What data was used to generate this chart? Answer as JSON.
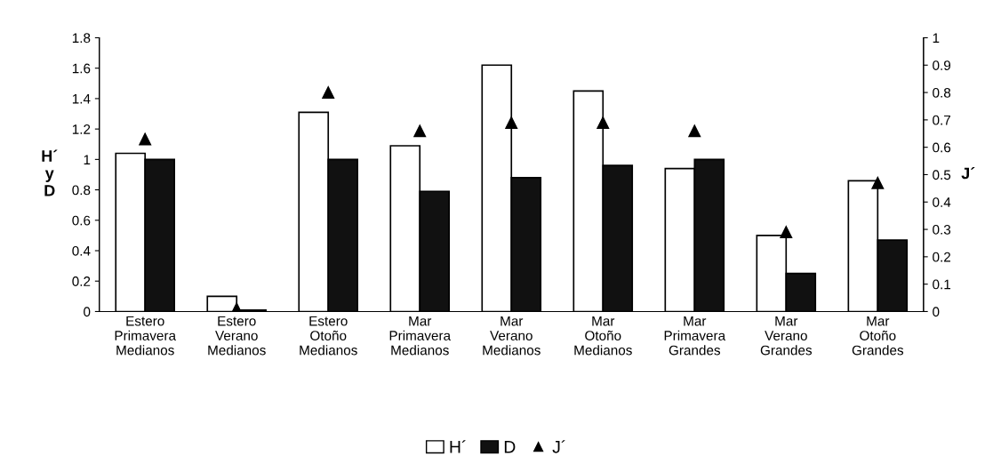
{
  "chart_data": {
    "type": "bar",
    "categories": [
      "Estero\nPrimavera\nMedianos",
      "Estero\nVerano\nMedianos",
      "Estero\nOtoño\nMedianos",
      "Mar\nPrimavera\nMedianos",
      "Mar\nVerano\nMedianos",
      "Mar\nOtoño\nMedianos",
      "Mar\nPrimavera\nGrandes",
      "Mar\nVerano\nGrandes",
      "Mar\nOtoño\nGrandes"
    ],
    "series": [
      {
        "name": "H´",
        "color": "#ffffff",
        "values": [
          1.04,
          0.1,
          1.31,
          1.09,
          1.62,
          1.45,
          0.94,
          0.5,
          0.86
        ]
      },
      {
        "name": "D",
        "color": "#111111",
        "values": [
          1.0,
          0.01,
          1.0,
          0.79,
          0.88,
          0.96,
          1.0,
          0.25,
          0.47
        ]
      },
      {
        "name": "J´",
        "type": "scatter",
        "axis": "y2",
        "marker": "triangle",
        "color": "#000000",
        "values": [
          0.63,
          0.01,
          0.8,
          0.66,
          0.69,
          0.69,
          0.66,
          0.29,
          0.47
        ]
      }
    ],
    "ylabel": "H´\ny\nD",
    "y2label": "J´",
    "ylim": [
      0,
      1.8
    ],
    "yticks": [
      0,
      0.2,
      0.4,
      0.6,
      0.8,
      1,
      1.2,
      1.4,
      1.6,
      1.8
    ],
    "y2lim": [
      0,
      1
    ],
    "y2ticks": [
      0,
      0.1,
      0.2,
      0.3,
      0.4,
      0.5,
      0.6,
      0.7,
      0.8,
      0.9,
      1
    ],
    "legend": "bottom",
    "grid": false
  }
}
